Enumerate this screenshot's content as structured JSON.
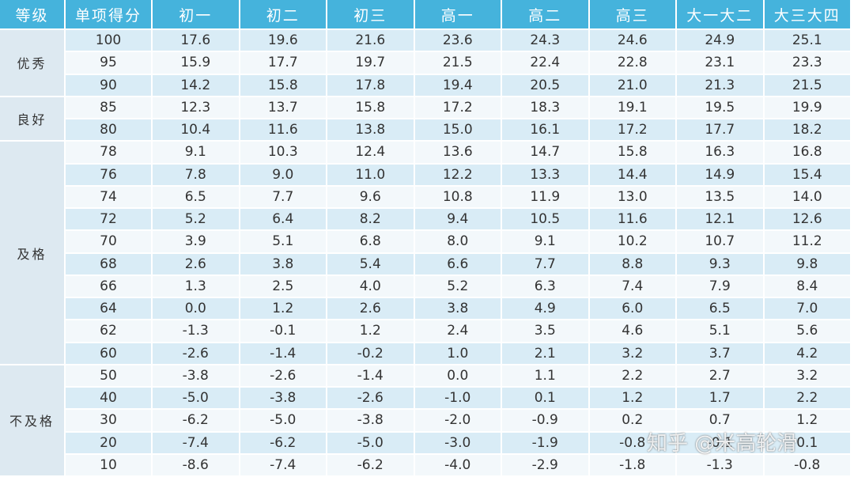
{
  "header": [
    "等级",
    "单项得分",
    "初一",
    "初二",
    "初三",
    "高一",
    "高二",
    "高三",
    "大一大二",
    "大三大四"
  ],
  "groups": [
    {
      "grade": "优秀",
      "rows": [
        [
          "100",
          "17.6",
          "19.6",
          "21.6",
          "23.6",
          "24.3",
          "24.6",
          "24.9",
          "25.1"
        ],
        [
          "95",
          "15.9",
          "17.7",
          "19.7",
          "21.5",
          "22.4",
          "22.8",
          "23.1",
          "23.3"
        ],
        [
          "90",
          "14.2",
          "15.8",
          "17.8",
          "19.4",
          "20.5",
          "21.0",
          "21.3",
          "21.5"
        ]
      ]
    },
    {
      "grade": "良好",
      "rows": [
        [
          "85",
          "12.3",
          "13.7",
          "15.8",
          "17.2",
          "18.3",
          "19.1",
          "19.5",
          "19.9"
        ],
        [
          "80",
          "10.4",
          "11.6",
          "13.8",
          "15.0",
          "16.1",
          "17.2",
          "17.7",
          "18.2"
        ]
      ]
    },
    {
      "grade": "及格",
      "rows": [
        [
          "78",
          "9.1",
          "10.3",
          "12.4",
          "13.6",
          "14.7",
          "15.8",
          "16.3",
          "16.8"
        ],
        [
          "76",
          "7.8",
          "9.0",
          "11.0",
          "12.2",
          "13.3",
          "14.4",
          "14.9",
          "15.4"
        ],
        [
          "74",
          "6.5",
          "7.7",
          "9.6",
          "10.8",
          "11.9",
          "13.0",
          "13.5",
          "14.0"
        ],
        [
          "72",
          "5.2",
          "6.4",
          "8.2",
          "9.4",
          "10.5",
          "11.6",
          "12.1",
          "12.6"
        ],
        [
          "70",
          "3.9",
          "5.1",
          "6.8",
          "8.0",
          "9.1",
          "10.2",
          "10.7",
          "11.2"
        ],
        [
          "68",
          "2.6",
          "3.8",
          "5.4",
          "6.6",
          "7.7",
          "8.8",
          "9.3",
          "9.8"
        ],
        [
          "66",
          "1.3",
          "2.5",
          "4.0",
          "5.2",
          "6.3",
          "7.4",
          "7.9",
          "8.4"
        ],
        [
          "64",
          "0.0",
          "1.2",
          "2.6",
          "3.8",
          "4.9",
          "6.0",
          "6.5",
          "7.0"
        ],
        [
          "62",
          "-1.3",
          "-0.1",
          "1.2",
          "2.4",
          "3.5",
          "4.6",
          "5.1",
          "5.6"
        ],
        [
          "60",
          "-2.6",
          "-1.4",
          "-0.2",
          "1.0",
          "2.1",
          "3.2",
          "3.7",
          "4.2"
        ]
      ]
    },
    {
      "grade": "不及格",
      "rows": [
        [
          "50",
          "-3.8",
          "-2.6",
          "-1.4",
          "0.0",
          "1.1",
          "2.2",
          "2.7",
          "3.2"
        ],
        [
          "40",
          "-5.0",
          "-3.8",
          "-2.6",
          "-1.0",
          "0.1",
          "1.2",
          "1.7",
          "2.2"
        ],
        [
          "30",
          "-6.2",
          "-5.0",
          "-3.8",
          "-2.0",
          "-0.9",
          "0.2",
          "0.7",
          "1.2"
        ],
        [
          "20",
          "-7.4",
          "-6.2",
          "-5.0",
          "-3.0",
          "-1.9",
          "-0.8",
          "-0.1",
          "0.1"
        ],
        [
          "10",
          "-8.6",
          "-7.4",
          "-6.2",
          "-4.0",
          "-2.9",
          "-1.8",
          "-1.3",
          "-0.8"
        ]
      ]
    }
  ],
  "watermark": "知乎 @米高轮滑"
}
